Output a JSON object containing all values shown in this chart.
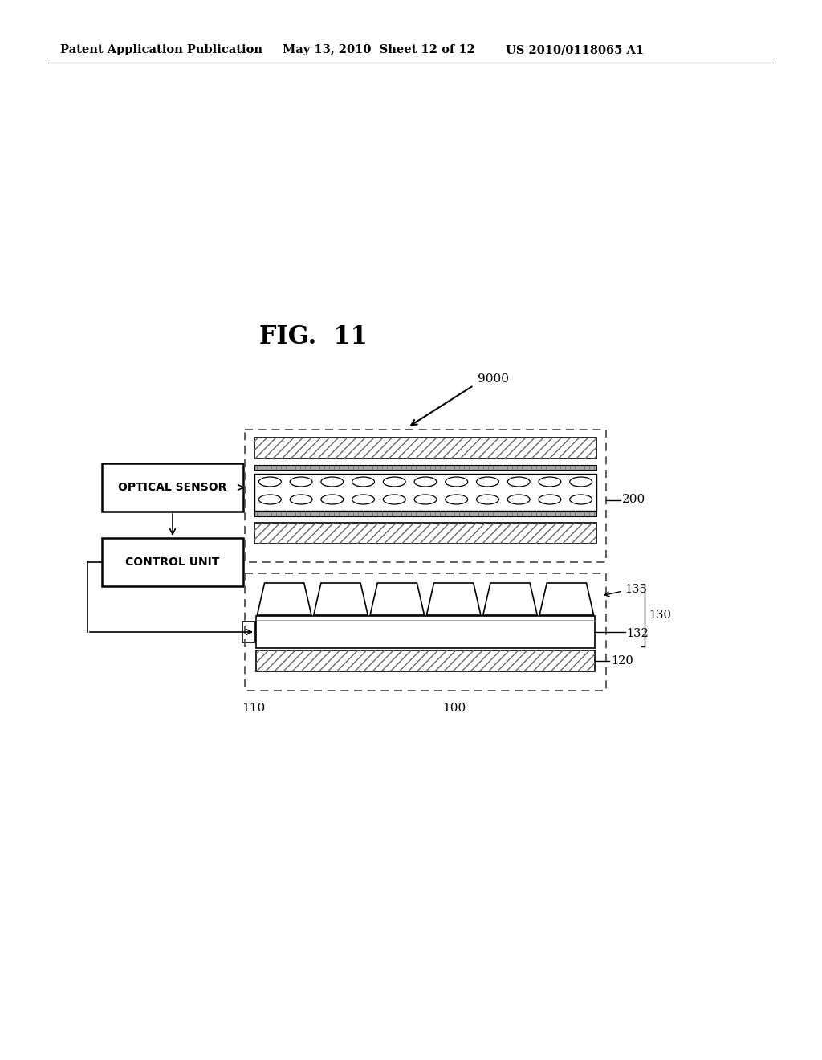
{
  "header_left": "Patent Application Publication",
  "header_mid": "May 13, 2010  Sheet 12 of 12",
  "header_right": "US 2010/0118065 A1",
  "fig_title": "FIG.  11",
  "label_9000": "9000",
  "label_200": "200",
  "label_135": "135",
  "label_130": "130",
  "label_132": "132",
  "label_120": "120",
  "label_110": "110",
  "label_100": "100",
  "box_optical_sensor": "OPTICAL SENSOR",
  "box_control_unit": "CONTROL UNIT",
  "bg_color": "#ffffff",
  "line_color": "#000000"
}
